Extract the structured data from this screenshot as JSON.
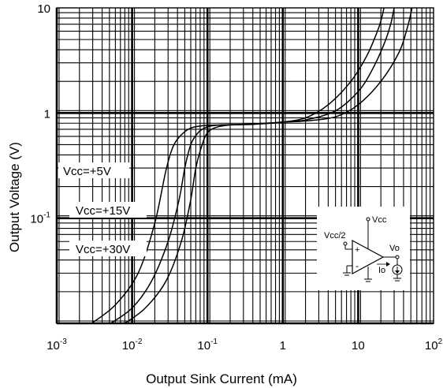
{
  "chart_data": {
    "type": "line",
    "title": "",
    "xlabel": "Output Sink Current   (mA)",
    "ylabel": "Output Voltage  (V)",
    "x_scale": "log",
    "y_scale": "log",
    "xlim": [
      0.001,
      100
    ],
    "ylim": [
      0.01,
      10
    ],
    "grid": true,
    "x_tick_labels": [
      {
        "value": 0.001,
        "base": "10",
        "exp": "-3"
      },
      {
        "value": 0.01,
        "base": "10",
        "exp": "-2"
      },
      {
        "value": 0.1,
        "base": "10",
        "exp": "-1"
      },
      {
        "value": 1,
        "base": "1",
        "exp": ""
      },
      {
        "value": 10,
        "base": "10",
        "exp": ""
      },
      {
        "value": 100,
        "base": "10",
        "exp": "2"
      }
    ],
    "y_tick_labels": [
      {
        "value": 10,
        "base": "10",
        "exp": ""
      },
      {
        "value": 1,
        "base": "1",
        "exp": ""
      },
      {
        "value": 0.1,
        "base": "10",
        "exp": "-1"
      }
    ],
    "series": [
      {
        "name": "Vcc=+5V",
        "x": [
          0.0029,
          0.006,
          0.012,
          0.02,
          0.028,
          0.035,
          0.045,
          0.06,
          0.09,
          0.15,
          0.3,
          0.6,
          1,
          2,
          4,
          8,
          13,
          18,
          20.5,
          22
        ],
        "y": [
          0.01,
          0.015,
          0.03,
          0.09,
          0.28,
          0.48,
          0.62,
          0.72,
          0.76,
          0.77,
          0.78,
          0.8,
          0.82,
          0.9,
          1.2,
          2,
          3.5,
          6,
          8,
          10
        ]
      },
      {
        "name": "Vcc=+15V",
        "x": [
          0.0052,
          0.01,
          0.018,
          0.03,
          0.042,
          0.05,
          0.06,
          0.075,
          0.1,
          0.15,
          0.3,
          0.6,
          1,
          2,
          5,
          10,
          15,
          22,
          27,
          30
        ],
        "y": [
          0.01,
          0.014,
          0.025,
          0.06,
          0.15,
          0.3,
          0.5,
          0.65,
          0.74,
          0.77,
          0.78,
          0.8,
          0.82,
          0.86,
          1.05,
          1.6,
          2.5,
          4.5,
          7,
          10
        ]
      },
      {
        "name": "Vcc=+30V",
        "x": [
          0.008,
          0.015,
          0.028,
          0.045,
          0.06,
          0.07,
          0.085,
          0.1,
          0.13,
          0.2,
          0.4,
          0.7,
          1,
          2,
          5,
          10,
          20,
          35,
          45,
          52
        ],
        "y": [
          0.01,
          0.014,
          0.025,
          0.06,
          0.15,
          0.3,
          0.5,
          0.65,
          0.73,
          0.77,
          0.78,
          0.8,
          0.82,
          0.84,
          0.92,
          1.2,
          2,
          3.8,
          6.5,
          10
        ]
      }
    ],
    "annotations": {
      "series_labels": [
        "Vcc=+5V",
        "Vcc=+15V",
        "Vcc=+30V"
      ]
    },
    "inset": {
      "labels": {
        "vcc": "Vcc",
        "vcc_half": "Vcc/2",
        "vo": "Vo",
        "io": "Io",
        "plus": "+",
        "minus": "-"
      }
    }
  }
}
